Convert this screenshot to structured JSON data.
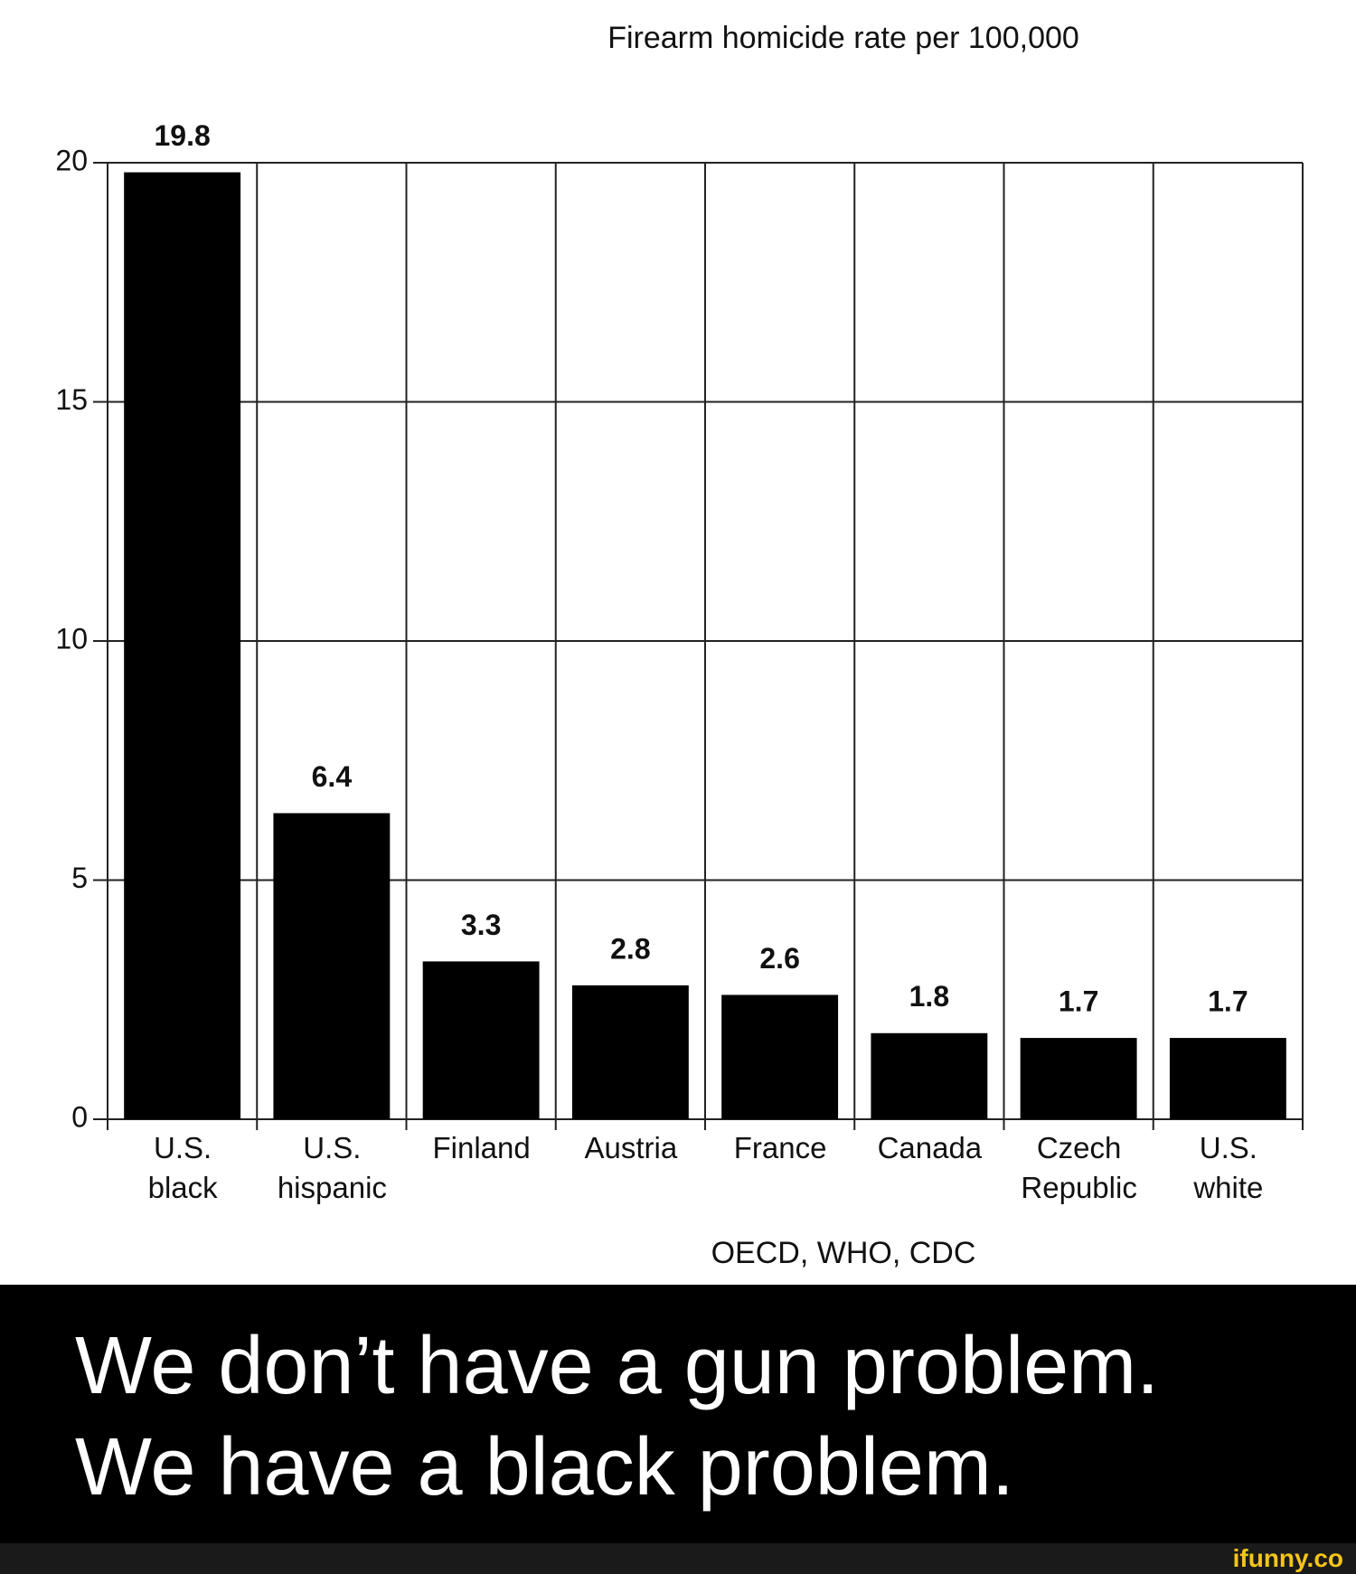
{
  "chart_data": {
    "type": "bar",
    "title": "Firearm homicide rate per 100,000",
    "categories": [
      "U.S.\nblack",
      "U.S.\nhispanic",
      "Finland",
      "Austria",
      "France",
      "Canada",
      "Czech\nRepublic",
      "U.S.\nwhite"
    ],
    "values": [
      19.8,
      6.4,
      3.3,
      2.8,
      2.6,
      1.8,
      1.7,
      1.7
    ],
    "color": "#000000",
    "ylim": [
      0,
      20
    ],
    "yticks": [
      0,
      5,
      10,
      15,
      20
    ],
    "grid": true,
    "source": "OECD, WHO, CDC"
  },
  "caption": [
    "We don’t have a gun problem.",
    "We have a black problem."
  ],
  "watermark": "ifunny.co"
}
